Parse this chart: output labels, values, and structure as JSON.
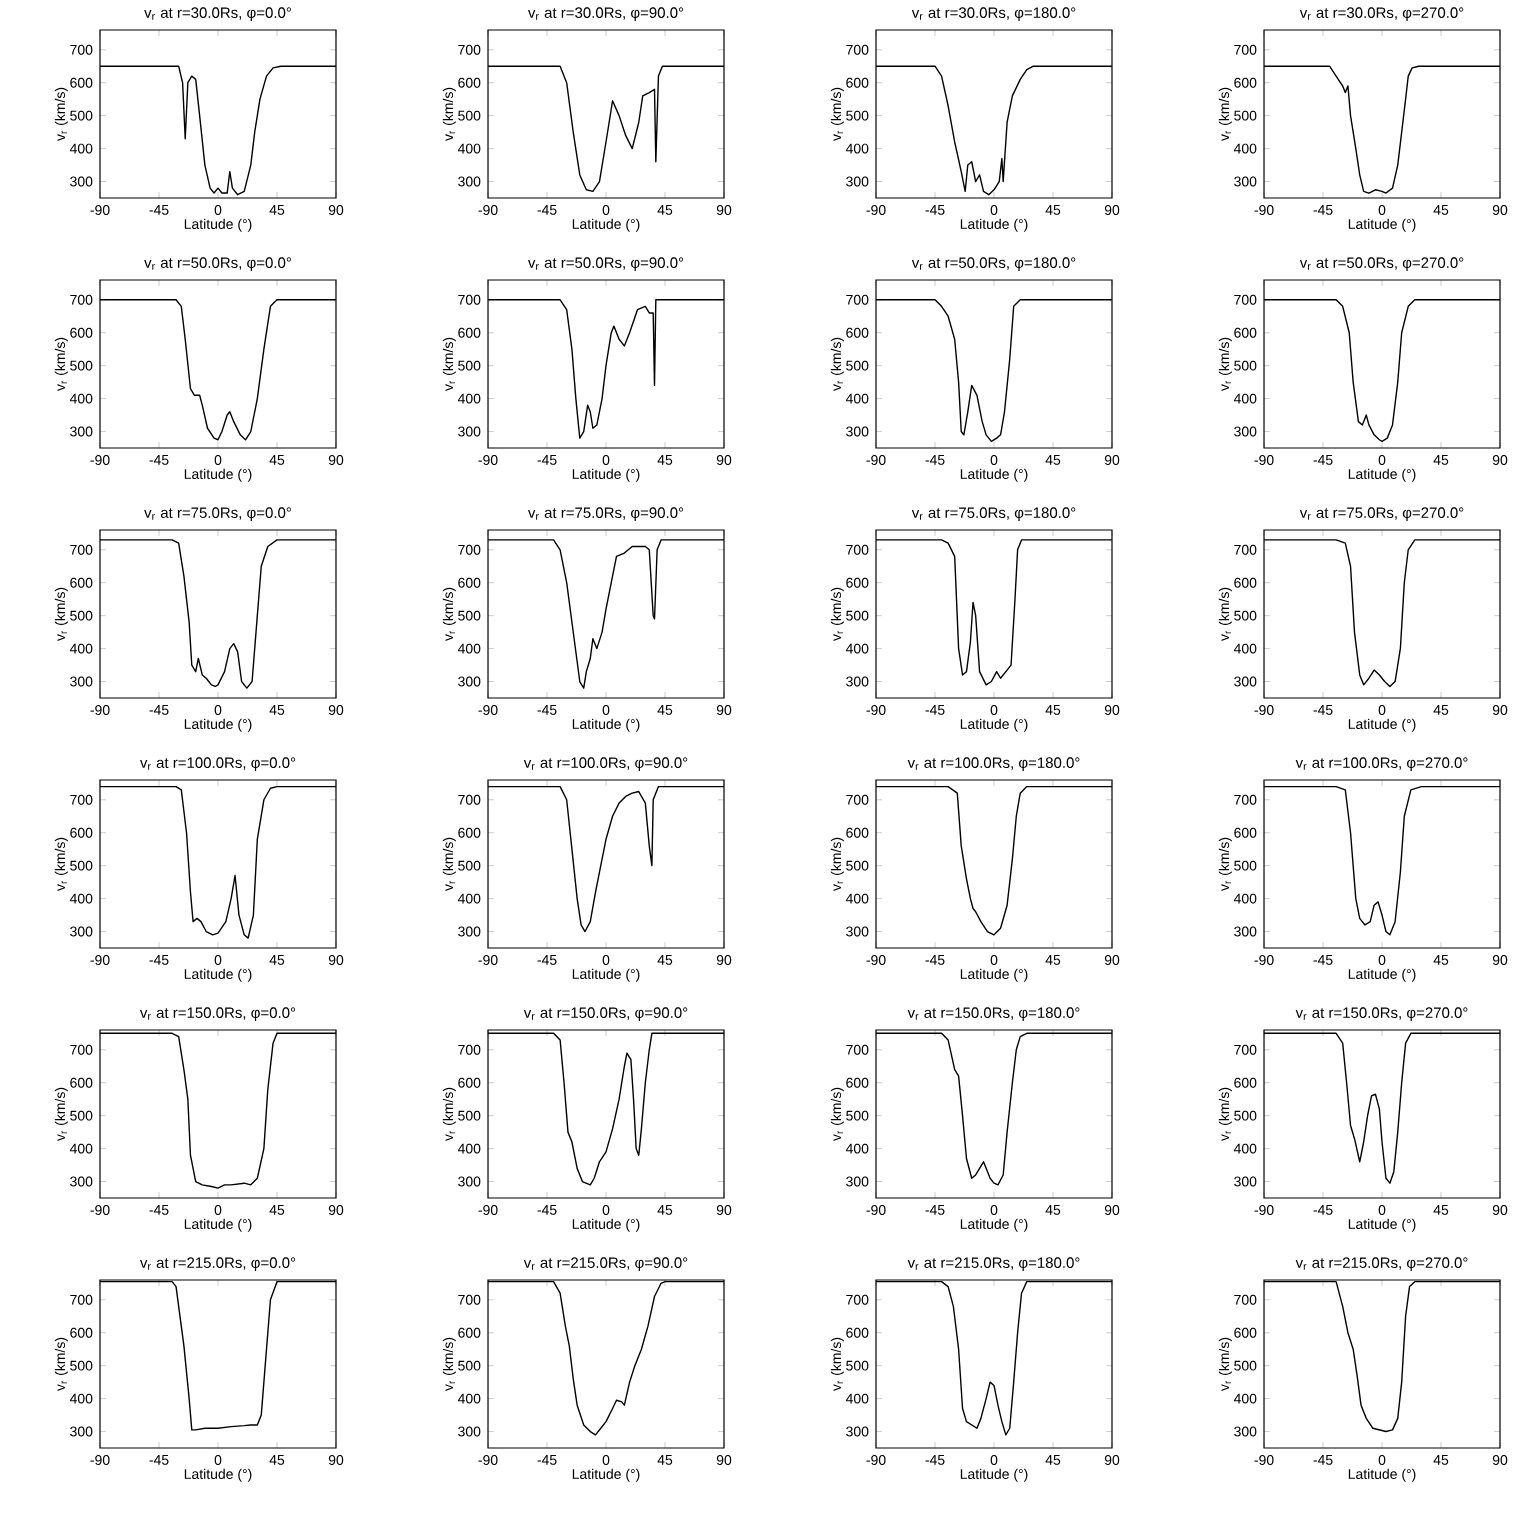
{
  "chart_data": [
    {
      "type": "line",
      "title": "v$_{r}$ at r=30.0Rs, φ=0.0°",
      "xlabel": "Latitude (°)",
      "ylabel": "v$_{r}$ (km/s)",
      "color": "#000000",
      "xlim": [
        -90,
        90
      ],
      "ylim": [
        250,
        760
      ],
      "xticks": [
        -90,
        -45,
        0,
        45,
        90
      ],
      "yticks": [
        300,
        400,
        500,
        600,
        700
      ],
      "x": [
        -90,
        -30,
        -27,
        -25,
        -23,
        -20,
        -17,
        -14,
        -10,
        -6,
        -3,
        0,
        3,
        7,
        9,
        11,
        15,
        20,
        25,
        28,
        32,
        37,
        42,
        48,
        90
      ],
      "values": [
        650,
        650,
        600,
        430,
        600,
        620,
        610,
        500,
        350,
        280,
        265,
        280,
        265,
        265,
        330,
        280,
        260,
        270,
        350,
        450,
        550,
        620,
        645,
        650,
        650
      ]
    },
    {
      "type": "line",
      "title": "v$_{r}$ at r=30.0Rs, φ=90.0°",
      "xlabel": "Latitude (°)",
      "ylabel": "v$_{r}$ (km/s)",
      "color": "#000000",
      "xlim": [
        -90,
        90
      ],
      "ylim": [
        250,
        760
      ],
      "xticks": [
        -90,
        -45,
        0,
        45,
        90
      ],
      "yticks": [
        300,
        400,
        500,
        600,
        700
      ],
      "x": [
        -90,
        -35,
        -30,
        -25,
        -20,
        -15,
        -10,
        -5,
        0,
        5,
        10,
        15,
        20,
        25,
        28,
        33,
        37,
        38,
        40,
        43,
        90
      ],
      "values": [
        650,
        650,
        600,
        450,
        320,
        275,
        270,
        300,
        420,
        545,
        500,
        440,
        400,
        480,
        560,
        570,
        580,
        360,
        620,
        650,
        650
      ]
    },
    {
      "type": "line",
      "title": "v$_{r}$ at r=30.0Rs, φ=180.0°",
      "xlabel": "Latitude (°)",
      "ylabel": "v$_{r}$ (km/s)",
      "color": "#000000",
      "xlim": [
        -90,
        90
      ],
      "ylim": [
        250,
        760
      ],
      "xticks": [
        -90,
        -45,
        0,
        45,
        90
      ],
      "yticks": [
        300,
        400,
        500,
        600,
        700
      ],
      "x": [
        -90,
        -45,
        -40,
        -35,
        -30,
        -25,
        -22,
        -20,
        -17,
        -14,
        -11,
        -8,
        -4,
        0,
        4,
        6,
        7,
        10,
        14,
        20,
        25,
        30,
        90
      ],
      "values": [
        650,
        650,
        620,
        530,
        420,
        330,
        270,
        350,
        360,
        300,
        320,
        270,
        260,
        275,
        300,
        370,
        300,
        480,
        560,
        610,
        640,
        650,
        650
      ]
    },
    {
      "type": "line",
      "title": "v$_{r}$ at r=30.0Rs, φ=270.0°",
      "xlabel": "Latitude (°)",
      "ylabel": "v$_{r}$ (km/s)",
      "color": "#000000",
      "xlim": [
        -90,
        90
      ],
      "ylim": [
        250,
        760
      ],
      "xticks": [
        -90,
        -45,
        0,
        45,
        90
      ],
      "yticks": [
        300,
        400,
        500,
        600,
        700
      ],
      "x": [
        -90,
        -40,
        -35,
        -30,
        -28,
        -26,
        -24,
        -20,
        -17,
        -14,
        -10,
        -5,
        0,
        3,
        8,
        12,
        15,
        18,
        20,
        23,
        28,
        90
      ],
      "values": [
        650,
        650,
        620,
        590,
        570,
        590,
        500,
        400,
        320,
        270,
        265,
        275,
        270,
        265,
        280,
        350,
        450,
        550,
        620,
        645,
        650,
        650
      ]
    },
    {
      "type": "line",
      "title": "v$_{r}$ at r=50.0Rs, φ=0.0°",
      "xlabel": "Latitude (°)",
      "ylabel": "v$_{r}$ (km/s)",
      "color": "#000000",
      "xlim": [
        -90,
        90
      ],
      "ylim": [
        250,
        760
      ],
      "xticks": [
        -90,
        -45,
        0,
        45,
        90
      ],
      "yticks": [
        300,
        400,
        500,
        600,
        700
      ],
      "x": [
        -90,
        -32,
        -28,
        -25,
        -21,
        -18,
        -14,
        -12,
        -8,
        -3,
        0,
        3,
        7,
        9,
        12,
        17,
        21,
        25,
        30,
        35,
        40,
        45,
        90
      ],
      "values": [
        700,
        700,
        680,
        580,
        430,
        410,
        410,
        380,
        310,
        280,
        275,
        300,
        350,
        360,
        330,
        290,
        275,
        300,
        400,
        550,
        680,
        700,
        700
      ]
    },
    {
      "type": "line",
      "title": "v$_{r}$ at r=50.0Rs, φ=90.0°",
      "xlabel": "Latitude (°)",
      "ylabel": "v$_{r}$ (km/s)",
      "color": "#000000",
      "xlim": [
        -90,
        90
      ],
      "ylim": [
        250,
        760
      ],
      "xticks": [
        -90,
        -45,
        0,
        45,
        90
      ],
      "yticks": [
        300,
        400,
        500,
        600,
        700
      ],
      "x": [
        -90,
        -35,
        -30,
        -26,
        -23,
        -20,
        -17,
        -14,
        -12,
        -10,
        -7,
        -3,
        0,
        4,
        6,
        10,
        14,
        18,
        24,
        30,
        33,
        36,
        37,
        38,
        90
      ],
      "values": [
        700,
        700,
        670,
        550,
        400,
        280,
        300,
        380,
        360,
        310,
        320,
        400,
        500,
        600,
        620,
        580,
        560,
        600,
        670,
        680,
        660,
        660,
        440,
        700,
        700
      ]
    },
    {
      "type": "line",
      "title": "v$_{r}$ at r=50.0Rs, φ=180.0°",
      "xlabel": "Latitude (°)",
      "ylabel": "v$_{r}$ (km/s)",
      "color": "#000000",
      "xlim": [
        -90,
        90
      ],
      "ylim": [
        250,
        760
      ],
      "xticks": [
        -90,
        -45,
        0,
        45,
        90
      ],
      "yticks": [
        300,
        400,
        500,
        600,
        700
      ],
      "x": [
        -90,
        -45,
        -40,
        -35,
        -30,
        -27,
        -25,
        -23,
        -20,
        -17,
        -13,
        -9,
        -6,
        -2,
        2,
        5,
        8,
        12,
        15,
        20,
        90
      ],
      "values": [
        700,
        700,
        680,
        650,
        580,
        450,
        300,
        290,
        360,
        440,
        410,
        330,
        290,
        270,
        280,
        290,
        360,
        520,
        680,
        700,
        700
      ]
    },
    {
      "type": "line",
      "title": "v$_{r}$ at r=50.0Rs, φ=270.0°",
      "xlabel": "Latitude (°)",
      "ylabel": "v$_{r}$ (km/s)",
      "color": "#000000",
      "xlim": [
        -90,
        90
      ],
      "ylim": [
        250,
        760
      ],
      "xticks": [
        -90,
        -45,
        0,
        45,
        90
      ],
      "yticks": [
        300,
        400,
        500,
        600,
        700
      ],
      "x": [
        -90,
        -35,
        -30,
        -25,
        -22,
        -18,
        -15,
        -12,
        -10,
        -6,
        -2,
        0,
        4,
        8,
        12,
        15,
        20,
        25,
        90
      ],
      "values": [
        700,
        700,
        680,
        600,
        450,
        330,
        320,
        350,
        320,
        290,
        275,
        270,
        280,
        320,
        450,
        600,
        680,
        700,
        700
      ]
    },
    {
      "type": "line",
      "title": "v$_{r}$ at r=75.0Rs, φ=0.0°",
      "xlabel": "Latitude (°)",
      "ylabel": "v$_{r}$ (km/s)",
      "color": "#000000",
      "xlim": [
        -90,
        90
      ],
      "ylim": [
        250,
        760
      ],
      "xticks": [
        -90,
        -45,
        0,
        45,
        90
      ],
      "yticks": [
        300,
        400,
        500,
        600,
        700
      ],
      "x": [
        -90,
        -35,
        -30,
        -26,
        -22,
        -20,
        -17,
        -15,
        -12,
        -9,
        -5,
        -2,
        0,
        5,
        9,
        12,
        15,
        18,
        22,
        26,
        30,
        33,
        38,
        45,
        90
      ],
      "values": [
        730,
        730,
        720,
        620,
        480,
        350,
        330,
        370,
        320,
        310,
        290,
        285,
        290,
        330,
        400,
        415,
        390,
        300,
        280,
        300,
        500,
        650,
        710,
        730,
        730
      ]
    },
    {
      "type": "line",
      "title": "v$_{r}$ at r=75.0Rs, φ=90.0°",
      "xlabel": "Latitude (°)",
      "ylabel": "v$_{r}$ (km/s)",
      "color": "#000000",
      "xlim": [
        -90,
        90
      ],
      "ylim": [
        250,
        760
      ],
      "xticks": [
        -90,
        -45,
        0,
        45,
        90
      ],
      "yticks": [
        300,
        400,
        500,
        600,
        700
      ],
      "x": [
        -90,
        -40,
        -35,
        -30,
        -25,
        -20,
        -17,
        -15,
        -12,
        -10,
        -7,
        -3,
        0,
        4,
        8,
        14,
        20,
        30,
        33,
        36,
        37,
        39,
        42,
        90
      ],
      "values": [
        730,
        730,
        700,
        600,
        450,
        300,
        280,
        330,
        370,
        430,
        400,
        450,
        520,
        600,
        680,
        690,
        710,
        710,
        700,
        500,
        490,
        700,
        730,
        730
      ]
    },
    {
      "type": "line",
      "title": "v$_{r}$ at r=75.0Rs, φ=180.0°",
      "xlabel": "Latitude (°)",
      "ylabel": "v$_{r}$ (km/s)",
      "color": "#000000",
      "xlim": [
        -90,
        90
      ],
      "ylim": [
        250,
        760
      ],
      "xticks": [
        -90,
        -45,
        0,
        45,
        90
      ],
      "yticks": [
        300,
        400,
        500,
        600,
        700
      ],
      "x": [
        -90,
        -40,
        -35,
        -30,
        -27,
        -24,
        -21,
        -18,
        -16,
        -14,
        -11,
        -6,
        -2,
        2,
        5,
        9,
        13,
        16,
        18,
        21,
        90
      ],
      "values": [
        730,
        730,
        720,
        680,
        400,
        320,
        330,
        420,
        540,
        500,
        330,
        290,
        300,
        330,
        310,
        330,
        350,
        550,
        700,
        730,
        730
      ]
    },
    {
      "type": "line",
      "title": "v$_{r}$ at r=75.0Rs, φ=270.0°",
      "xlabel": "Latitude (°)",
      "ylabel": "v$_{r}$ (km/s)",
      "color": "#000000",
      "xlim": [
        -90,
        90
      ],
      "ylim": [
        250,
        760
      ],
      "xticks": [
        -90,
        -45,
        0,
        45,
        90
      ],
      "yticks": [
        300,
        400,
        500,
        600,
        700
      ],
      "x": [
        -90,
        -35,
        -28,
        -24,
        -21,
        -17,
        -14,
        -10,
        -6,
        -2,
        2,
        6,
        10,
        14,
        17,
        20,
        25,
        90
      ],
      "values": [
        730,
        730,
        720,
        650,
        450,
        320,
        290,
        310,
        335,
        320,
        300,
        285,
        300,
        400,
        600,
        700,
        730,
        730
      ]
    },
    {
      "type": "line",
      "title": "v$_{r}$ at r=100.0Rs, φ=0.0°",
      "xlabel": "Latitude (°)",
      "ylabel": "v$_{r}$ (km/s)",
      "color": "#000000",
      "xlim": [
        -90,
        90
      ],
      "ylim": [
        250,
        760
      ],
      "xticks": [
        -90,
        -45,
        0,
        45,
        90
      ],
      "yticks": [
        300,
        400,
        500,
        600,
        700
      ],
      "x": [
        -90,
        -32,
        -28,
        -24,
        -21,
        -19,
        -16,
        -13,
        -9,
        -4,
        0,
        6,
        10,
        13,
        16,
        20,
        23,
        27,
        30,
        35,
        40,
        45,
        90
      ],
      "values": [
        740,
        740,
        730,
        600,
        420,
        330,
        340,
        330,
        300,
        290,
        295,
        330,
        400,
        470,
        350,
        290,
        280,
        350,
        580,
        700,
        735,
        740,
        740
      ]
    },
    {
      "type": "line",
      "title": "v$_{r}$ at r=100.0Rs, φ=90.0°",
      "xlabel": "Latitude (°)",
      "ylabel": "v$_{r}$ (km/s)",
      "color": "#000000",
      "xlim": [
        -90,
        90
      ],
      "ylim": [
        250,
        760
      ],
      "xticks": [
        -90,
        -45,
        0,
        45,
        90
      ],
      "yticks": [
        300,
        400,
        500,
        600,
        700
      ],
      "x": [
        -90,
        -35,
        -30,
        -26,
        -22,
        -19,
        -16,
        -12,
        -8,
        -4,
        0,
        5,
        10,
        15,
        20,
        25,
        30,
        33,
        35,
        36,
        40,
        90
      ],
      "values": [
        740,
        740,
        700,
        550,
        400,
        320,
        300,
        330,
        420,
        500,
        580,
        650,
        690,
        710,
        720,
        725,
        690,
        560,
        500,
        700,
        740,
        740
      ]
    },
    {
      "type": "line",
      "title": "v$_{r}$ at r=100.0Rs, φ=180.0°",
      "xlabel": "Latitude (°)",
      "ylabel": "v$_{r}$ (km/s)",
      "color": "#000000",
      "xlim": [
        -90,
        90
      ],
      "ylim": [
        250,
        760
      ],
      "xticks": [
        -90,
        -45,
        0,
        45,
        90
      ],
      "yticks": [
        300,
        400,
        500,
        600,
        700
      ],
      "x": [
        -90,
        -35,
        -28,
        -25,
        -21,
        -18,
        -16,
        -14,
        -10,
        -5,
        0,
        5,
        10,
        14,
        17,
        20,
        25,
        90
      ],
      "values": [
        740,
        740,
        720,
        560,
        460,
        400,
        370,
        360,
        330,
        300,
        290,
        310,
        380,
        520,
        650,
        720,
        740,
        740
      ]
    },
    {
      "type": "line",
      "title": "v$_{r}$ at r=100.0Rs, φ=270.0°",
      "xlabel": "Latitude (°)",
      "ylabel": "v$_{r}$ (km/s)",
      "color": "#000000",
      "xlim": [
        -90,
        90
      ],
      "ylim": [
        250,
        760
      ],
      "xticks": [
        -90,
        -45,
        0,
        45,
        90
      ],
      "yticks": [
        300,
        400,
        500,
        600,
        700
      ],
      "x": [
        -90,
        -35,
        -28,
        -24,
        -20,
        -17,
        -13,
        -9,
        -6,
        -3,
        0,
        3,
        6,
        10,
        14,
        17,
        22,
        30,
        90
      ],
      "values": [
        740,
        740,
        730,
        600,
        400,
        340,
        320,
        330,
        380,
        390,
        350,
        300,
        290,
        330,
        480,
        650,
        730,
        740,
        740
      ]
    },
    {
      "type": "line",
      "title": "v$_{r}$ at r=150.0Rs, φ=0.0°",
      "xlabel": "Latitude (°)",
      "ylabel": "v$_{r}$ (km/s)",
      "color": "#000000",
      "xlim": [
        -90,
        90
      ],
      "ylim": [
        250,
        760
      ],
      "xticks": [
        -90,
        -45,
        0,
        45,
        90
      ],
      "yticks": [
        300,
        400,
        500,
        600,
        700
      ],
      "x": [
        -90,
        -35,
        -30,
        -26,
        -23,
        -21,
        -17,
        -12,
        -5,
        0,
        5,
        10,
        20,
        25,
        30,
        35,
        38,
        42,
        45,
        90
      ],
      "values": [
        750,
        750,
        740,
        640,
        550,
        380,
        300,
        290,
        285,
        280,
        290,
        290,
        295,
        290,
        310,
        400,
        580,
        720,
        750,
        750
      ]
    },
    {
      "type": "line",
      "title": "v$_{r}$ at r=150.0Rs, φ=90.0°",
      "xlabel": "Latitude (°)",
      "ylabel": "v$_{r}$ (km/s)",
      "color": "#000000",
      "xlim": [
        -90,
        90
      ],
      "ylim": [
        250,
        760
      ],
      "xticks": [
        -90,
        -45,
        0,
        45,
        90
      ],
      "yticks": [
        300,
        400,
        500,
        600,
        700
      ],
      "x": [
        -90,
        -40,
        -35,
        -32,
        -29,
        -26,
        -22,
        -18,
        -12,
        -9,
        -5,
        0,
        5,
        10,
        14,
        16,
        19,
        21,
        23,
        25,
        27,
        30,
        33,
        35,
        90
      ],
      "values": [
        750,
        750,
        730,
        600,
        450,
        420,
        340,
        300,
        290,
        310,
        360,
        390,
        460,
        550,
        650,
        690,
        670,
        550,
        400,
        380,
        460,
        600,
        700,
        750,
        750
      ]
    },
    {
      "type": "line",
      "title": "v$_{r}$ at r=150.0Rs, φ=180.0°",
      "xlabel": "Latitude (°)",
      "ylabel": "v$_{r}$ (km/s)",
      "color": "#000000",
      "xlim": [
        -90,
        90
      ],
      "ylim": [
        250,
        760
      ],
      "xticks": [
        -90,
        -45,
        0,
        45,
        90
      ],
      "yticks": [
        300,
        400,
        500,
        600,
        700
      ],
      "x": [
        -90,
        -40,
        -35,
        -30,
        -27,
        -24,
        -21,
        -17,
        -14,
        -11,
        -8,
        -6,
        -3,
        0,
        3,
        7,
        10,
        14,
        17,
        20,
        25,
        90
      ],
      "values": [
        750,
        750,
        730,
        640,
        620,
        500,
        370,
        310,
        320,
        340,
        360,
        340,
        310,
        295,
        290,
        320,
        450,
        600,
        700,
        740,
        750,
        750
      ]
    },
    {
      "type": "line",
      "title": "v$_{r}$ at r=150.0Rs, φ=270.0°",
      "xlabel": "Latitude (°)",
      "ylabel": "v$_{r}$ (km/s)",
      "color": "#000000",
      "xlim": [
        -90,
        90
      ],
      "ylim": [
        250,
        760
      ],
      "xticks": [
        -90,
        -45,
        0,
        45,
        90
      ],
      "yticks": [
        300,
        400,
        500,
        600,
        700
      ],
      "x": [
        -90,
        -35,
        -30,
        -27,
        -24,
        -21,
        -17,
        -14,
        -11,
        -8,
        -5,
        -2,
        0,
        3,
        6,
        9,
        12,
        15,
        18,
        22,
        90
      ],
      "values": [
        750,
        750,
        720,
        600,
        470,
        430,
        360,
        420,
        500,
        560,
        565,
        520,
        420,
        310,
        295,
        330,
        450,
        600,
        720,
        750,
        750
      ]
    },
    {
      "type": "line",
      "title": "v$_{r}$ at r=215.0Rs, φ=0.0°",
      "xlabel": "Latitude (°)",
      "ylabel": "v$_{r}$ (km/s)",
      "color": "#000000",
      "xlim": [
        -90,
        90
      ],
      "ylim": [
        250,
        760
      ],
      "xticks": [
        -90,
        -45,
        0,
        45,
        90
      ],
      "yticks": [
        300,
        400,
        500,
        600,
        700
      ],
      "x": [
        -90,
        -35,
        -32,
        -30,
        -26,
        -22,
        -20,
        -17,
        -10,
        0,
        10,
        20,
        25,
        30,
        33,
        36,
        40,
        45,
        90
      ],
      "values": [
        755,
        755,
        740,
        680,
        560,
        400,
        305,
        305,
        310,
        310,
        315,
        318,
        320,
        320,
        350,
        500,
        700,
        755,
        755
      ]
    },
    {
      "type": "line",
      "title": "v$_{r}$ at r=215.0Rs, φ=90.0°",
      "xlabel": "Latitude (°)",
      "ylabel": "v$_{r}$ (km/s)",
      "color": "#000000",
      "xlim": [
        -90,
        90
      ],
      "ylim": [
        250,
        760
      ],
      "xticks": [
        -90,
        -45,
        0,
        45,
        90
      ],
      "yticks": [
        300,
        400,
        500,
        600,
        700
      ],
      "x": [
        -90,
        -40,
        -35,
        -31,
        -28,
        -25,
        -22,
        -17,
        -12,
        -8,
        -4,
        0,
        5,
        8,
        12,
        14,
        18,
        22,
        27,
        32,
        37,
        42,
        45,
        90
      ],
      "values": [
        755,
        755,
        720,
        620,
        560,
        460,
        380,
        320,
        300,
        290,
        310,
        330,
        370,
        395,
        390,
        380,
        450,
        500,
        550,
        620,
        710,
        750,
        755,
        755
      ]
    },
    {
      "type": "line",
      "title": "v$_{r}$ at r=215.0Rs, φ=180.0°",
      "xlabel": "Latitude (°)",
      "ylabel": "v$_{r}$ (km/s)",
      "color": "#000000",
      "xlim": [
        -90,
        90
      ],
      "ylim": [
        250,
        760
      ],
      "xticks": [
        -90,
        -45,
        0,
        45,
        90
      ],
      "yticks": [
        300,
        400,
        500,
        600,
        700
      ],
      "x": [
        -90,
        -40,
        -35,
        -31,
        -27,
        -24,
        -21,
        -17,
        -13,
        -10,
        -6,
        -3,
        0,
        3,
        6,
        9,
        12,
        15,
        18,
        21,
        25,
        90
      ],
      "values": [
        755,
        755,
        740,
        680,
        550,
        370,
        330,
        320,
        310,
        340,
        400,
        450,
        440,
        380,
        330,
        290,
        310,
        450,
        600,
        720,
        755,
        755
      ]
    },
    {
      "type": "line",
      "title": "v$_{r}$ at r=215.0Rs, φ=270.0°",
      "xlabel": "Latitude (°)",
      "ylabel": "v$_{r}$ (km/s)",
      "color": "#000000",
      "xlim": [
        -90,
        90
      ],
      "ylim": [
        250,
        760
      ],
      "xticks": [
        -90,
        -45,
        0,
        45,
        90
      ],
      "yticks": [
        300,
        400,
        500,
        600,
        700
      ],
      "x": [
        -90,
        -35,
        -30,
        -26,
        -22,
        -19,
        -16,
        -12,
        -7,
        -2,
        3,
        8,
        12,
        15,
        18,
        21,
        25,
        90
      ],
      "values": [
        755,
        755,
        680,
        600,
        550,
        470,
        380,
        340,
        310,
        305,
        300,
        305,
        340,
        450,
        650,
        740,
        755,
        755
      ]
    }
  ]
}
